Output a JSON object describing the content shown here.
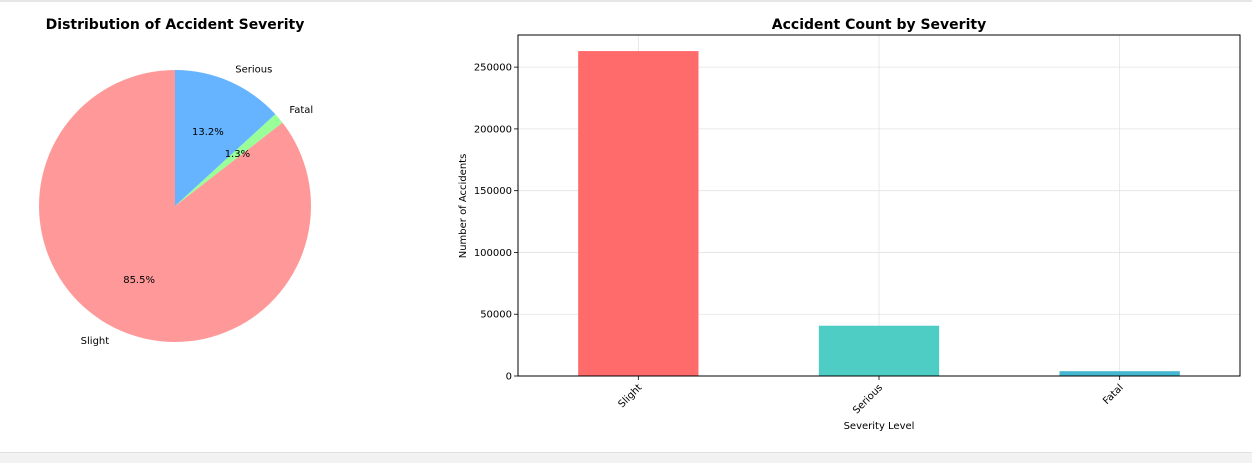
{
  "chart_data": [
    {
      "type": "pie",
      "title": "Distribution of Accident Severity",
      "slices": [
        {
          "label": "Slight",
          "value": 85.5,
          "pct_label": "85.5%",
          "color": "#ff9999"
        },
        {
          "label": "Fatal",
          "value": 1.3,
          "pct_label": "1.3%",
          "color": "#99ff99"
        },
        {
          "label": "Serious",
          "value": 13.2,
          "pct_label": "13.2%",
          "color": "#66b3ff"
        }
      ],
      "start_angle_deg": 90,
      "direction": "counterclockwise"
    },
    {
      "type": "bar",
      "title": "Accident Count by Severity",
      "xlabel": "Severity Level",
      "ylabel": "Number of Accidents",
      "categories": [
        "Slight",
        "Serious",
        "Fatal"
      ],
      "values": [
        263000,
        40700,
        3900
      ],
      "colors": [
        "#ff6b6b",
        "#4ecdc4",
        "#45b7d1"
      ],
      "ylim": [
        0,
        276000
      ],
      "yticks": [
        0,
        50000,
        100000,
        150000,
        200000,
        250000
      ],
      "ytick_labels": [
        "0",
        "50000",
        "100000",
        "150000",
        "200000",
        "250000"
      ],
      "grid": true
    }
  ]
}
